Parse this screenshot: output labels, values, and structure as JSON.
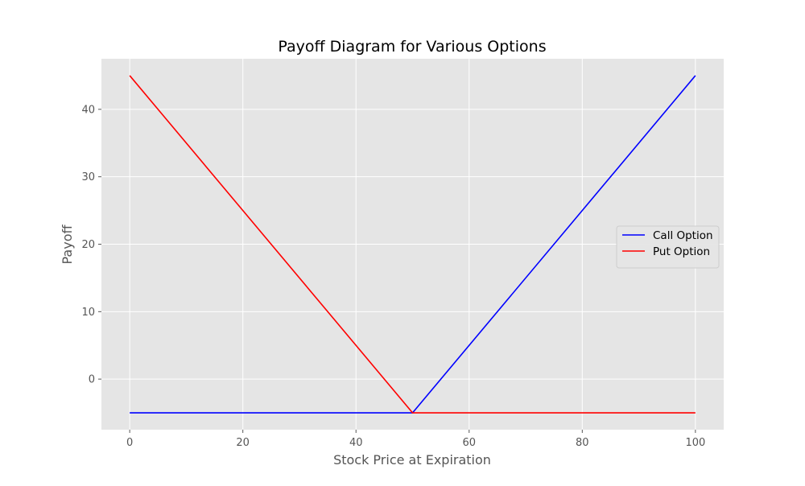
{
  "chart_data": {
    "type": "line",
    "title": "Payoff Diagram for Various Options",
    "xlabel": "Stock Price at Expiration",
    "ylabel": "Payoff",
    "xlim": [
      -5,
      105
    ],
    "ylim": [
      -7.5,
      47.5
    ],
    "xticks": [
      0,
      20,
      40,
      60,
      80,
      100
    ],
    "yticks": [
      0,
      10,
      20,
      30,
      40
    ],
    "grid": true,
    "legend_position": "center-right",
    "series": [
      {
        "name": "Call Option",
        "color": "#0000ff",
        "x": [
          0,
          50,
          100
        ],
        "y": [
          -5,
          -5,
          45
        ]
      },
      {
        "name": "Put Option",
        "color": "#ff0000",
        "x": [
          0,
          50,
          100
        ],
        "y": [
          45,
          -5,
          -5
        ]
      }
    ]
  }
}
